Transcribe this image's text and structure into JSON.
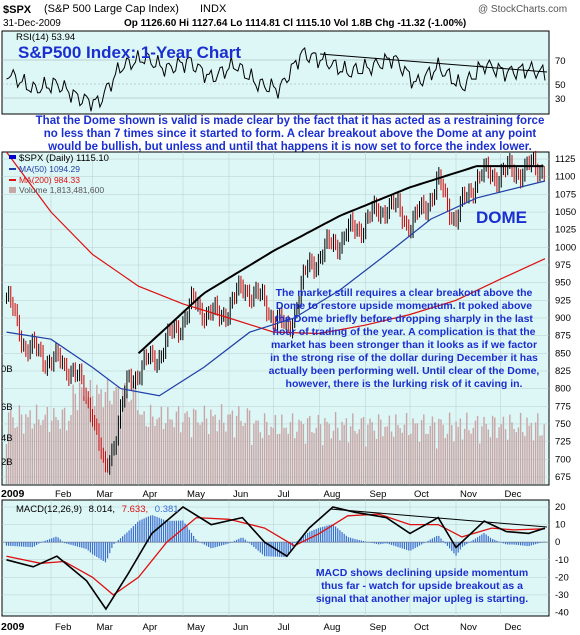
{
  "header": {
    "symbol": "$SPX",
    "name": "(S&P 500 Large Cap Index)",
    "exchange": "INDX",
    "date": "31-Dec-2009",
    "quote": "Op 1126.60  Hi 1127.64  Lo 1114.81  Cl 1115.10  Vol 1.8B  Chg -11.32 (-1.00%)",
    "watermark": "@ StockCharts.com"
  },
  "rsi_panel": {
    "legend": "RSI(14) 53.94",
    "title": "S&P500 Index: 1-Year Chart",
    "ticks": [
      "70",
      "50",
      "30"
    ]
  },
  "commentary_top": [
    "That the Dome shown is valid is made clear by the fact that it has acted as a restraining force",
    "no less than 7 times since it started to form. A clear breakout above the Dome at any point",
    "would be bullish, but unless and until that happens it is now set to force the index lower."
  ],
  "price_legend": {
    "spx": "$SPX (Daily) 1115.10",
    "ma50": "MA(50) 1094.29",
    "ma200": "MA(200) 984.33",
    "volume": "Volume 1,813,481,600"
  },
  "dome_label": "DOME",
  "commentary_mid": [
    "The market still requires a clear breakout above the",
    "Dome to restore upside momentum. It poked above",
    "the Dome briefly before dropping sharply in the last",
    "hour of trading of the year. A complication is that the",
    "market has been stronger than it looks as if we factor",
    "in the strong rise of the dollar during December it has",
    "actually been performing well. Until clear of the Dome,",
    "however, there is the lurking risk of it caving in."
  ],
  "volume_axis_labels": [
    "0B",
    "6B",
    "4B",
    "2B"
  ],
  "year_label": "2009",
  "months": [
    "Feb",
    "Mar",
    "Apr",
    "May",
    "Jun",
    "Jul",
    "Aug",
    "Sep",
    "Oct",
    "Nov",
    "Dec"
  ],
  "macd_panel": {
    "legend_name": "MACD(12,26,9)",
    "legend_macd": "8.014,",
    "legend_signal": "7.633,",
    "legend_hist": "0.381",
    "ticks": [
      "20",
      "10",
      "0",
      "-10",
      "-20",
      "-30",
      "-40"
    ],
    "commentary": [
      "MACD shows declining upside momentum",
      "thus far - watch for upside breakout as a",
      "signal that another major upleg is starting."
    ]
  },
  "colors": {
    "panel_bg": "#ddf6f6",
    "price_line": "#0000cc",
    "ma50": "#1f3fa8",
    "ma200": "#dd1111",
    "up_bar": "#000000",
    "down_bar": "#cc0000",
    "volume": "#c9a6a6",
    "text_blue": "#1a2fd0",
    "dome": "#000000"
  },
  "chart_data": {
    "type": "line",
    "title": "S&P500 Index: 1-Year Chart",
    "x_period": "Jan 2009 - Dec 2009 (daily)",
    "price": {
      "ylim": [
        665,
        1135
      ],
      "ticks": [
        675,
        700,
        725,
        750,
        775,
        800,
        825,
        850,
        875,
        900,
        925,
        950,
        975,
        1000,
        1025,
        1050,
        1075,
        1100,
        1125
      ],
      "series": [
        {
          "name": "$SPX (Daily) 1115.10",
          "x": [
            "2009-01-02",
            "2009-01-15",
            "2009-02-01",
            "2009-02-15",
            "2009-03-01",
            "2009-03-09",
            "2009-03-26",
            "2009-04-15",
            "2009-05-08",
            "2009-05-25",
            "2009-06-12",
            "2009-06-25",
            "2009-07-10",
            "2009-07-25",
            "2009-08-10",
            "2009-08-28",
            "2009-09-15",
            "2009-09-25",
            "2009-10-02",
            "2009-10-20",
            "2009-11-01",
            "2009-11-15",
            "2009-12-01",
            "2009-12-15",
            "2009-12-31"
          ],
          "values": [
            930,
            860,
            840,
            830,
            770,
            676,
            815,
            850,
            920,
            900,
            945,
            920,
            880,
            975,
            1005,
            1030,
            1060,
            1050,
            1030,
            1090,
            1040,
            1100,
            1105,
            1110,
            1115
          ]
        },
        {
          "name": "MA(50) 1094.29",
          "x": [
            "2009-01-02",
            "2009-02-01",
            "2009-03-01",
            "2009-03-20",
            "2009-04-15",
            "2009-05-15",
            "2009-06-15",
            "2009-07-15",
            "2009-08-15",
            "2009-09-15",
            "2009-10-15",
            "2009-11-15",
            "2009-12-31"
          ],
          "values": [
            880,
            870,
            830,
            800,
            790,
            830,
            880,
            900,
            940,
            990,
            1040,
            1070,
            1094
          ]
        },
        {
          "name": "MA(200) 984.33",
          "x": [
            "2009-01-02",
            "2009-02-01",
            "2009-03-01",
            "2009-04-01",
            "2009-05-01",
            "2009-06-01",
            "2009-07-01",
            "2009-08-01",
            "2009-09-01",
            "2009-10-01",
            "2009-11-01",
            "2009-12-01",
            "2009-12-31"
          ],
          "values": [
            1135,
            1050,
            990,
            945,
            920,
            900,
            880,
            878,
            890,
            905,
            925,
            955,
            984
          ]
        },
        {
          "name": "Dome",
          "x": [
            "2009-04-01",
            "2009-05-15",
            "2009-07-01",
            "2009-08-15",
            "2009-10-01",
            "2009-11-15",
            "2009-12-31"
          ],
          "values": [
            850,
            935,
            995,
            1045,
            1085,
            1115,
            1115
          ]
        }
      ]
    },
    "rsi": {
      "name": "RSI(14) 53.94",
      "ylim": [
        20,
        90
      ],
      "ticks": [
        30,
        50,
        70
      ],
      "x": [
        "2009-01-02",
        "2009-01-20",
        "2009-02-05",
        "2009-02-20",
        "2009-03-05",
        "2009-03-20",
        "2009-04-05",
        "2009-04-20",
        "2009-05-05",
        "2009-05-20",
        "2009-06-05",
        "2009-06-20",
        "2009-07-05",
        "2009-07-20",
        "2009-08-05",
        "2009-08-20",
        "2009-09-05",
        "2009-09-20",
        "2009-10-05",
        "2009-10-20",
        "2009-11-05",
        "2009-11-20",
        "2009-12-05",
        "2009-12-20",
        "2009-12-31"
      ],
      "values": [
        55,
        40,
        45,
        32,
        28,
        60,
        68,
        58,
        65,
        50,
        62,
        45,
        40,
        72,
        65,
        55,
        60,
        68,
        45,
        60,
        42,
        62,
        55,
        58,
        54
      ]
    },
    "macd": {
      "ylim": [
        -42,
        24
      ],
      "ticks": [
        20,
        10,
        0,
        -10,
        -20,
        -30,
        -40
      ],
      "series": [
        {
          "name": "MACD",
          "x": [
            "2009-01-02",
            "2009-01-20",
            "2009-02-05",
            "2009-02-25",
            "2009-03-10",
            "2009-03-25",
            "2009-04-10",
            "2009-05-01",
            "2009-05-20",
            "2009-06-10",
            "2009-06-25",
            "2009-07-10",
            "2009-07-25",
            "2009-08-10",
            "2009-08-25",
            "2009-09-15",
            "2009-10-01",
            "2009-10-20",
            "2009-11-01",
            "2009-11-20",
            "2009-12-05",
            "2009-12-20",
            "2009-12-31"
          ],
          "values": [
            -10,
            -14,
            -8,
            -22,
            -38,
            -18,
            5,
            20,
            10,
            14,
            0,
            -8,
            8,
            20,
            17,
            14,
            5,
            14,
            -3,
            12,
            6,
            5,
            8
          ]
        },
        {
          "name": "Signal",
          "x": [
            "2009-01-02",
            "2009-01-25",
            "2009-02-10",
            "2009-03-01",
            "2009-03-15",
            "2009-04-01",
            "2009-04-20",
            "2009-05-10",
            "2009-06-01",
            "2009-06-25",
            "2009-07-15",
            "2009-08-01",
            "2009-08-20",
            "2009-09-10",
            "2009-10-01",
            "2009-10-20",
            "2009-11-05",
            "2009-11-25",
            "2009-12-10",
            "2009-12-31"
          ],
          "values": [
            -8,
            -12,
            -11,
            -20,
            -30,
            -20,
            0,
            14,
            13,
            8,
            -2,
            5,
            15,
            16,
            10,
            10,
            3,
            8,
            7,
            7.6
          ]
        }
      ]
    }
  }
}
